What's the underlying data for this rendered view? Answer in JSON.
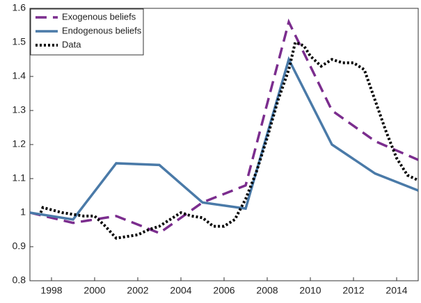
{
  "chart_data": {
    "type": "line",
    "xlim": [
      1997,
      2015
    ],
    "xticks": [
      1998,
      2000,
      2002,
      2004,
      2006,
      2008,
      2010,
      2012,
      2014
    ],
    "ylim": [
      0.8,
      1.6
    ],
    "yticks": [
      0.8,
      0.9,
      1,
      1.1,
      1.2,
      1.3,
      1.4,
      1.5,
      1.6
    ],
    "legend": "upper-left",
    "series": [
      {
        "name": "Exogenous beliefs",
        "color": "#7b2d8e",
        "style": "dashed",
        "x": [
          1997,
          1999,
          2001,
          2003,
          2005,
          2007,
          2009,
          2011,
          2013,
          2015
        ],
        "values": [
          1.0,
          0.97,
          0.99,
          0.94,
          1.03,
          1.08,
          1.56,
          1.3,
          1.21,
          1.155
        ]
      },
      {
        "name": "Endogenous beliefs",
        "color": "#4a7aa8",
        "style": "solid",
        "x": [
          1997,
          1999,
          2001,
          2003,
          2005,
          2007,
          2009,
          2011,
          2013,
          2015
        ],
        "values": [
          1.0,
          0.98,
          1.145,
          1.14,
          1.03,
          1.012,
          1.45,
          1.2,
          1.115,
          1.065
        ]
      },
      {
        "name": "Data",
        "color": "#000000",
        "style": "dotted",
        "x": [
          1997.5,
          1997.6,
          1998.5,
          1999.5,
          2000,
          2000.5,
          2001,
          2001.5,
          2002,
          2002.5,
          2003,
          2003.5,
          2004,
          2004.5,
          2005,
          2005.5,
          2006,
          2006.5,
          2007,
          2007.5,
          2008,
          2008.5,
          2009,
          2009.3,
          2009.7,
          2010,
          2010.5,
          2011,
          2011.5,
          2012,
          2012.5,
          2013,
          2013.5,
          2014,
          2014.5,
          2015
        ],
        "values": [
          1.0,
          1.015,
          1.0,
          0.99,
          0.99,
          0.96,
          0.925,
          0.93,
          0.935,
          0.95,
          0.96,
          0.98,
          1.0,
          0.99,
          0.985,
          0.96,
          0.96,
          0.98,
          1.04,
          1.12,
          1.22,
          1.33,
          1.42,
          1.5,
          1.49,
          1.46,
          1.43,
          1.45,
          1.44,
          1.44,
          1.42,
          1.33,
          1.24,
          1.16,
          1.11,
          1.095
        ]
      }
    ]
  }
}
